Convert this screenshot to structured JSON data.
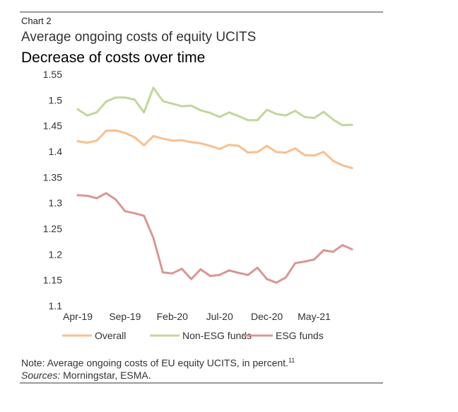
{
  "header": {
    "chart_label": "Chart  2",
    "title": "Average ongoing costs of equity UCITS",
    "subtitle": "Decrease of costs over time"
  },
  "footer": {
    "note_text": "Note: Average ongoing costs of EU equity UCITS, in percent.",
    "note_ref": "11",
    "sources_label": "Sources:",
    "sources_text": " Morningstar, ESMA."
  },
  "chart_data": {
    "type": "line",
    "x_tick_labels": [
      "Apr-19",
      "Sep-19",
      "Feb-20",
      "Jul-20",
      "Dec-20",
      "May-21"
    ],
    "x_months": [
      "Apr-19",
      "May-19",
      "Jun-19",
      "Jul-19",
      "Aug-19",
      "Sep-19",
      "Oct-19",
      "Nov-19",
      "Dec-19",
      "Jan-20",
      "Feb-20",
      "Mar-20",
      "Apr-20",
      "May-20",
      "Jun-20",
      "Jul-20",
      "Aug-20",
      "Sep-20",
      "Oct-20",
      "Nov-20",
      "Dec-20",
      "Jan-21",
      "Feb-21",
      "Mar-21",
      "Apr-21",
      "May-21",
      "Jun-21",
      "Jul-21",
      "Aug-21",
      "Sep-21"
    ],
    "ylim": [
      1.1,
      1.55
    ],
    "y_ticks": [
      "1.55",
      "1.5",
      "1.45",
      "1.4",
      "1.35",
      "1.3",
      "1.25",
      "1.2",
      "1.15",
      "1.1"
    ],
    "grid": false,
    "legend_position": "bottom",
    "series": [
      {
        "name": "Overall",
        "color": "#f9bf8f",
        "values": [
          1.42,
          1.417,
          1.421,
          1.44,
          1.441,
          1.436,
          1.428,
          1.412,
          1.43,
          1.425,
          1.421,
          1.422,
          1.418,
          1.416,
          1.411,
          1.405,
          1.413,
          1.411,
          1.398,
          1.399,
          1.411,
          1.399,
          1.398,
          1.406,
          1.393,
          1.392,
          1.399,
          1.382,
          1.373,
          1.368
        ]
      },
      {
        "name": "Non-ESG funds",
        "color": "#c3d69b",
        "values": [
          1.482,
          1.47,
          1.476,
          1.497,
          1.505,
          1.505,
          1.501,
          1.476,
          1.524,
          1.498,
          1.493,
          1.488,
          1.489,
          1.48,
          1.475,
          1.467,
          1.476,
          1.469,
          1.461,
          1.461,
          1.481,
          1.473,
          1.47,
          1.479,
          1.467,
          1.465,
          1.477,
          1.462,
          1.451,
          1.452
        ]
      },
      {
        "name": "ESG funds",
        "color": "#d99694",
        "values": [
          1.315,
          1.314,
          1.309,
          1.319,
          1.307,
          1.284,
          1.28,
          1.275,
          1.232,
          1.165,
          1.163,
          1.172,
          1.152,
          1.171,
          1.158,
          1.16,
          1.169,
          1.164,
          1.16,
          1.174,
          1.152,
          1.145,
          1.155,
          1.183,
          1.186,
          1.19,
          1.208,
          1.205,
          1.218,
          1.21
        ]
      }
    ]
  }
}
